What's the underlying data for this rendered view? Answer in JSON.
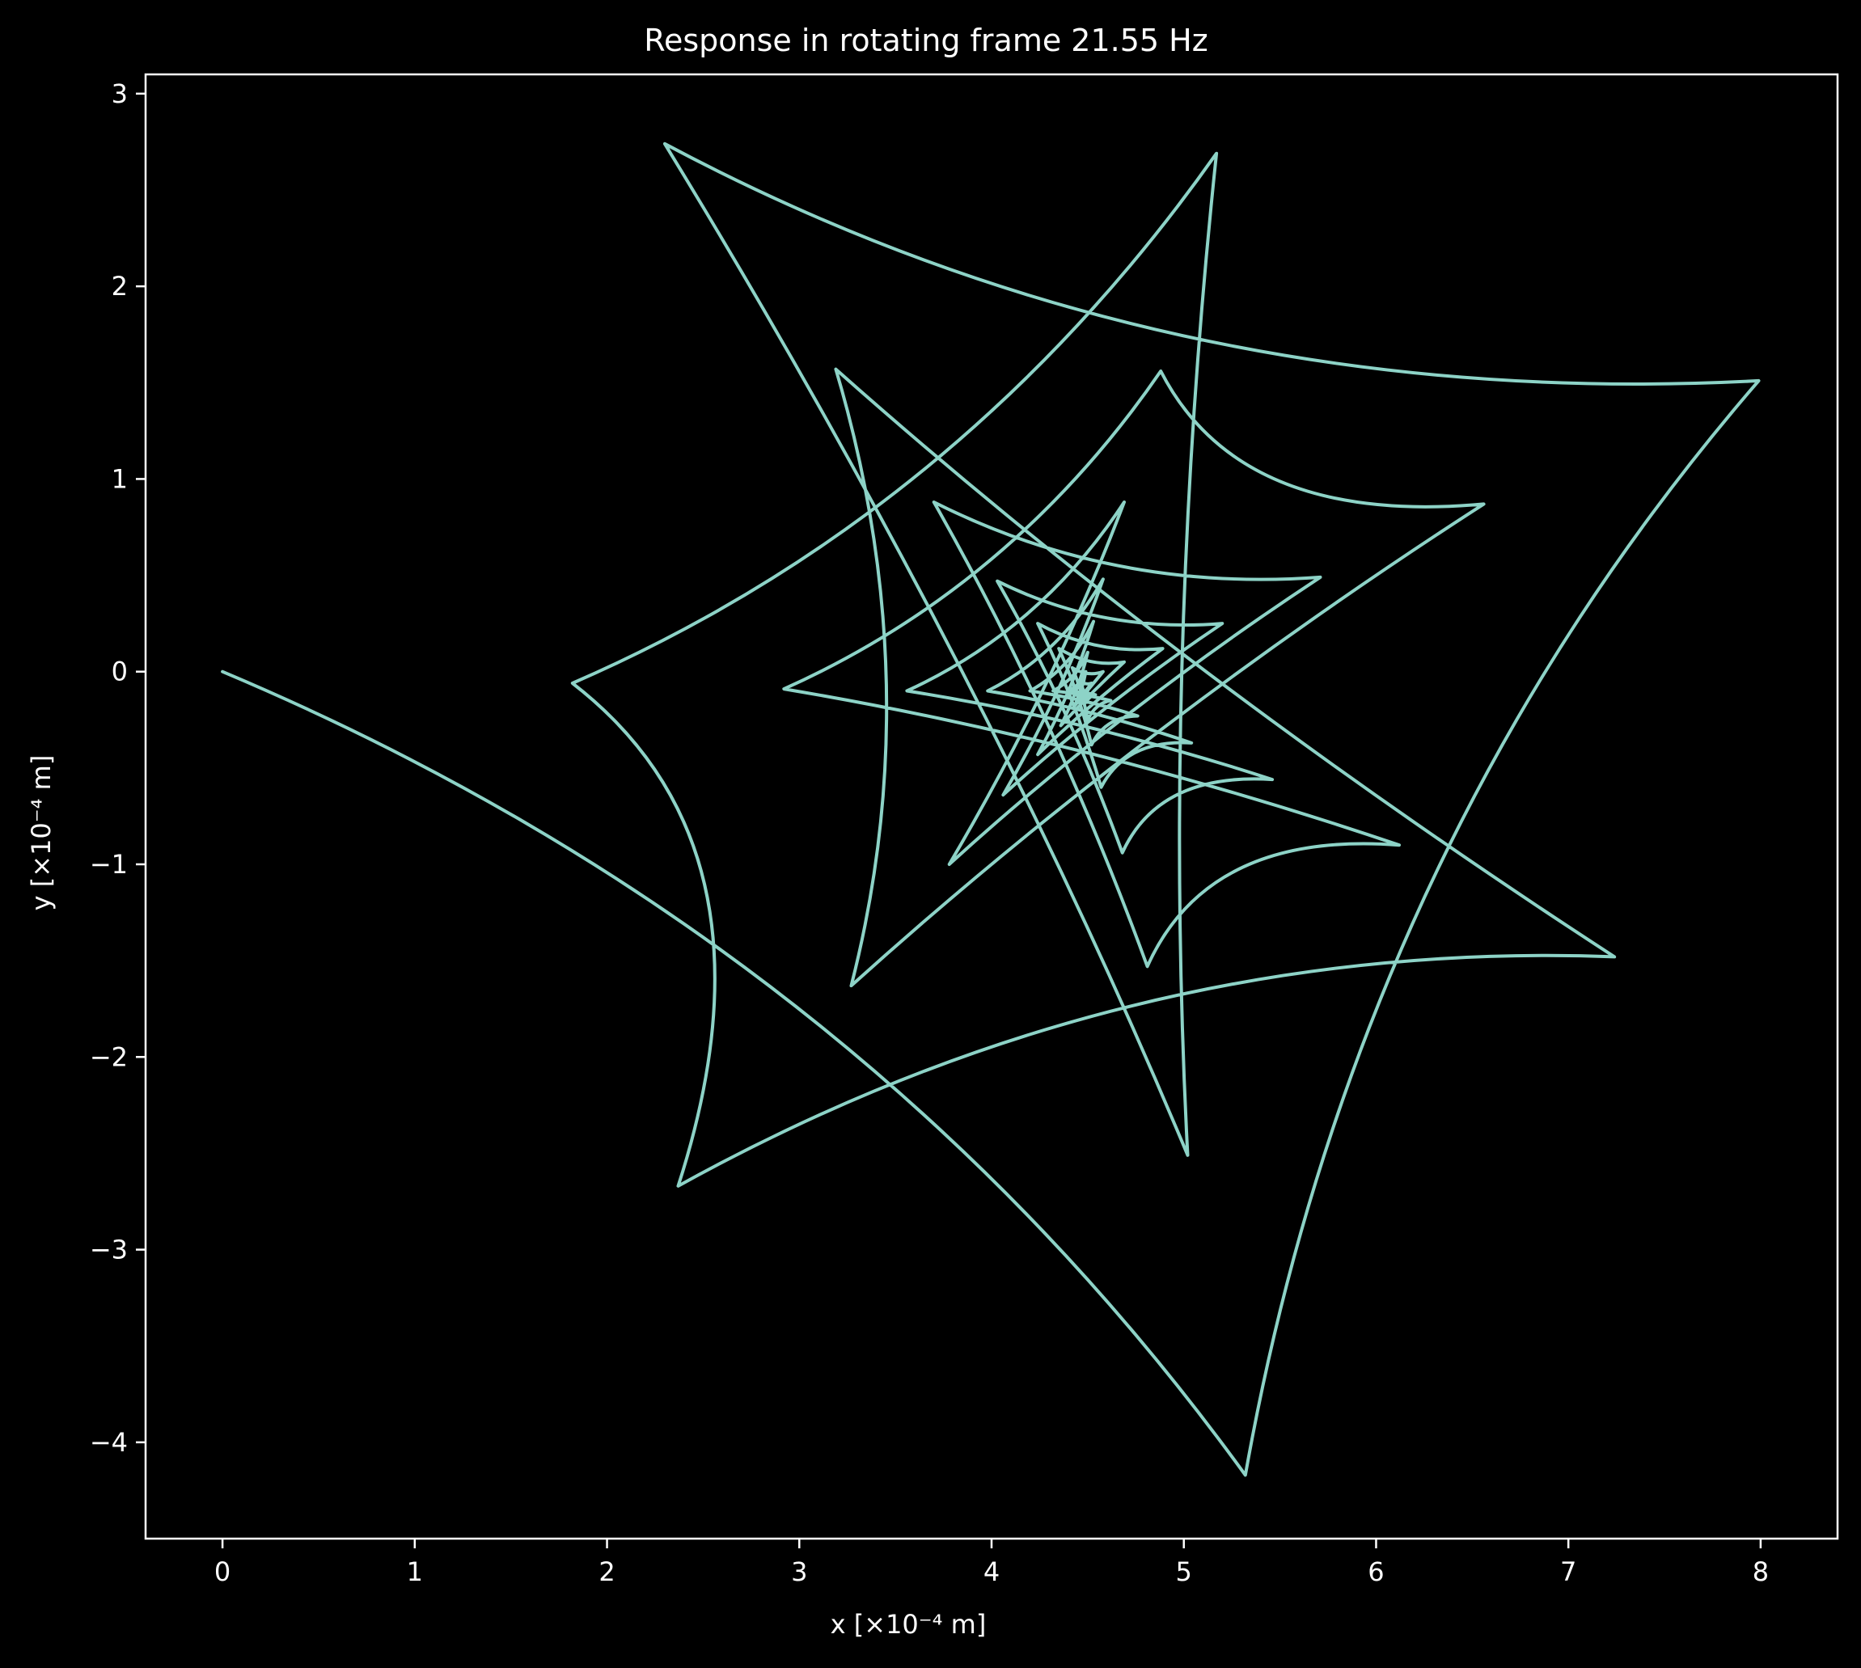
{
  "chart_data": {
    "type": "line",
    "title": "Response in rotating frame 21.55 Hz",
    "xlabel": "x [×10⁻⁴ m]",
    "ylabel": "y [×10⁻⁴ m]",
    "xlim": [
      -0.4,
      8.4
    ],
    "ylim": [
      -4.5,
      3.1
    ],
    "xticks": [
      0,
      1,
      2,
      3,
      4,
      5,
      6,
      7,
      8
    ],
    "xtick_labels": [
      "0",
      "1",
      "2",
      "3",
      "4",
      "5",
      "6",
      "7",
      "8"
    ],
    "yticks": [
      3,
      2,
      1,
      0,
      -1,
      -2,
      -3,
      -4
    ],
    "ytick_labels": [
      "3",
      "2",
      "1",
      "0",
      "−1",
      "−2",
      "−3",
      "−4"
    ],
    "grid": false,
    "legend": "none",
    "background_color": "#000000",
    "line_color": "#8dd3c7",
    "series": [
      {
        "description_of_shape": "damped hypocycloid-like spiral converging to center",
        "start": [
          0,
          0
        ],
        "center": [
          4.5,
          -0.1
        ],
        "cusp_points": [
          [
            0,
            0
          ],
          [
            5.32,
            -4.17
          ],
          [
            7.99,
            1.51
          ],
          [
            2.3,
            2.74
          ],
          [
            5.02,
            -2.51
          ],
          [
            5.17,
            2.69
          ],
          [
            1.82,
            -0.06
          ],
          [
            2.37,
            -2.67
          ],
          [
            7.24,
            -1.48
          ],
          [
            3.19,
            1.57
          ],
          [
            3.27,
            -1.63
          ],
          [
            6.56,
            0.87
          ],
          [
            4.88,
            1.56
          ],
          [
            2.92,
            -0.09
          ],
          [
            6.12,
            -0.9
          ],
          [
            4.81,
            -1.53
          ],
          [
            3.7,
            0.88
          ],
          [
            5.71,
            0.49
          ],
          [
            3.78,
            -1.0
          ],
          [
            4.69,
            0.88
          ],
          [
            3.56,
            -0.1
          ],
          [
            5.46,
            -0.56
          ],
          [
            4.68,
            -0.94
          ],
          [
            4.03,
            0.47
          ],
          [
            5.2,
            0.25
          ],
          [
            4.06,
            -0.64
          ],
          [
            4.58,
            0.48
          ],
          [
            3.98,
            -0.1
          ],
          [
            5.04,
            -0.37
          ],
          [
            4.57,
            -0.6
          ],
          [
            4.24,
            0.25
          ],
          [
            4.89,
            0.12
          ],
          [
            4.24,
            -0.43
          ],
          [
            4.53,
            0.26
          ],
          [
            4.2,
            -0.1
          ],
          [
            4.76,
            -0.23
          ],
          [
            4.52,
            -0.38
          ],
          [
            4.35,
            0.12
          ],
          [
            4.69,
            0.05
          ],
          [
            4.36,
            -0.28
          ],
          [
            4.5,
            0.1
          ],
          [
            4.32,
            -0.1
          ],
          [
            4.62,
            -0.15
          ],
          [
            4.5,
            -0.25
          ],
          [
            4.42,
            0.02
          ],
          [
            4.58,
            0.0
          ],
          [
            4.43,
            -0.18
          ],
          [
            4.49,
            0.0
          ],
          [
            4.4,
            -0.1
          ],
          [
            4.54,
            -0.12
          ],
          [
            4.49,
            -0.16
          ],
          [
            4.46,
            -0.05
          ],
          [
            4.52,
            -0.06
          ],
          [
            4.47,
            -0.12
          ],
          [
            4.5,
            -0.1
          ]
        ]
      }
    ]
  }
}
